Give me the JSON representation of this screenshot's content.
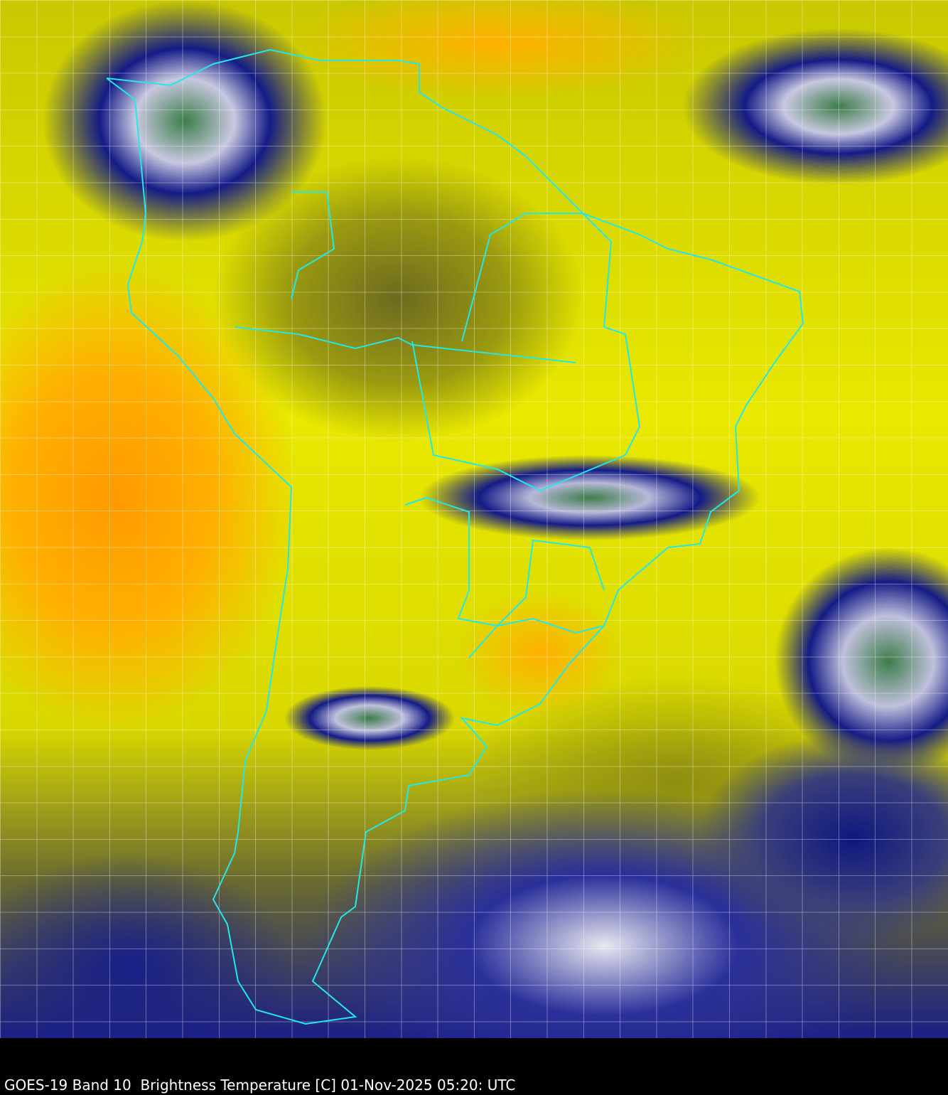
{
  "caption": "GOES-19 Band 10  Brightness Temperature [C] 01-Nov-2025 05:20: UTC",
  "colors": {
    "border_lines": "#22e8e8",
    "background": "#000000",
    "warm": "#ff9a00",
    "moist": "#ffff00",
    "cold_cloud": "#141b86",
    "coldest": "#3d7d4a"
  }
}
